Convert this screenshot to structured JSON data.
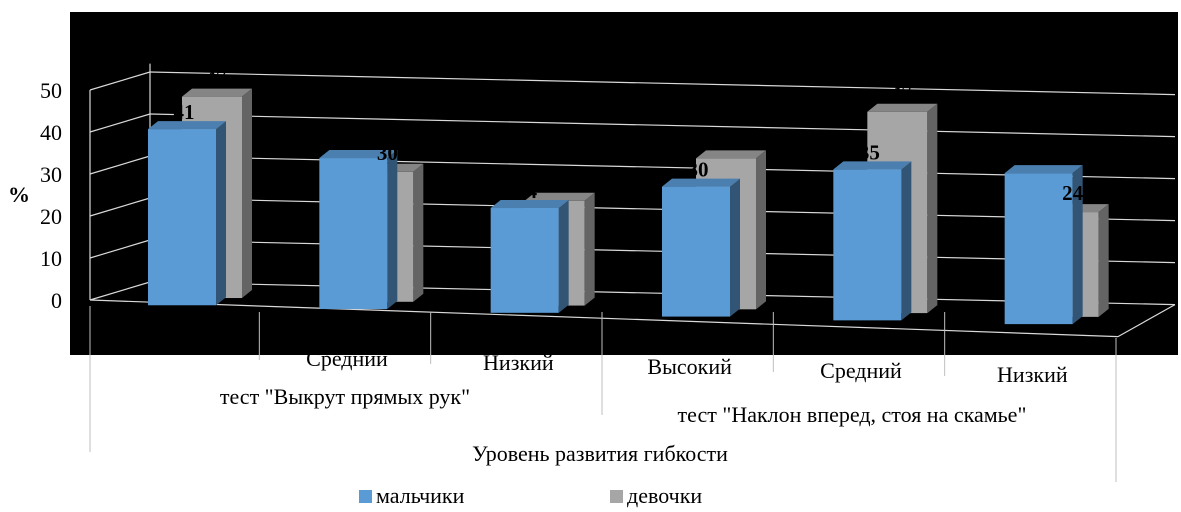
{
  "chart_data": {
    "type": "bar",
    "title": "",
    "ylabel": "%",
    "xlabel": "Уровень развития гибкости",
    "ylim": [
      0,
      50
    ],
    "yticks": [
      0,
      10,
      20,
      30,
      40,
      50
    ],
    "grid": true,
    "legend_position": "bottom",
    "groups": [
      {
        "label": "тест \"Выкрут прямых рук\"",
        "span": [
          0,
          2
        ]
      },
      {
        "label": "тест \"Наклон вперед, стоя на скамье\"",
        "span": [
          3,
          5
        ]
      }
    ],
    "categories": [
      "",
      "Средний",
      "Низкий",
      "Высокий",
      "Средний",
      "Низкий"
    ],
    "series": [
      {
        "name": "мальчики",
        "color": "#5b9bd5",
        "values": [
          41,
          35,
          24,
          30,
          35,
          35
        ],
        "labels": [
          "41",
          "",
          "24",
          "30",
          "35",
          "35"
        ]
      },
      {
        "name": "девочки",
        "color": "#a6a6a6",
        "values": [
          47,
          30,
          24,
          35,
          47,
          24
        ],
        "labels": [
          "47",
          "30",
          "24",
          "35",
          "47",
          "24"
        ]
      }
    ]
  }
}
